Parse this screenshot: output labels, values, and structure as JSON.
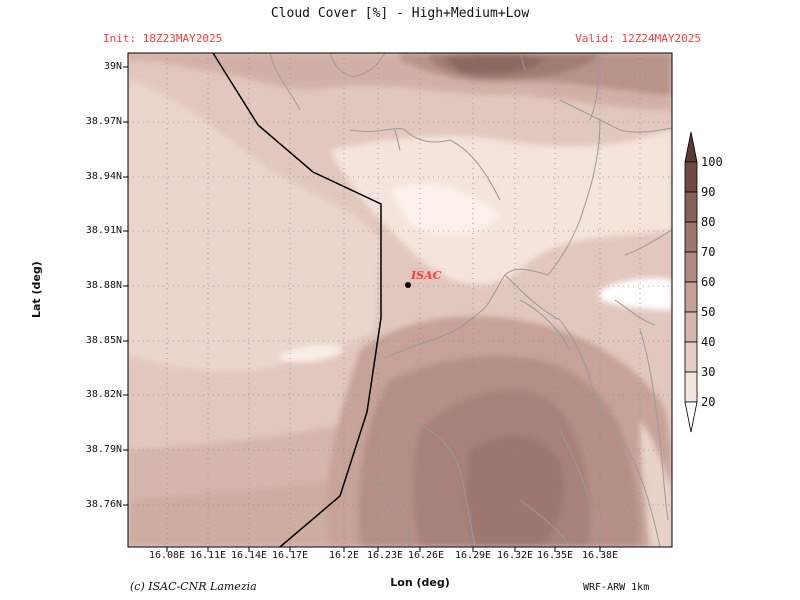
{
  "title": "Cloud Cover [%] - High+Medium+Low",
  "init_label": "Init: 18Z23MAY2025",
  "valid_label": "Valid: 12Z24MAY2025",
  "axes": {
    "x_label": "Lon (deg)",
    "y_label": "Lat (deg)",
    "x_ticks": [
      "16.08E",
      "16.11E",
      "16.14E",
      "16.17E",
      "16.2E",
      "16.23E",
      "16.26E",
      "16.29E",
      "16.32E",
      "16.35E",
      "16.38E"
    ],
    "y_ticks": [
      "39N",
      "38.97N",
      "38.94N",
      "38.91N",
      "38.88N",
      "38.85N",
      "38.82N",
      "38.79N",
      "38.76N"
    ]
  },
  "site": {
    "label": "ISAC",
    "marker": "station-dot"
  },
  "colorbar": {
    "levels": [
      "100",
      "90",
      "80",
      "70",
      "60",
      "50",
      "40",
      "30",
      "20"
    ],
    "colors": [
      "#6e4a42",
      "#86625a",
      "#9c776e",
      "#b08b82",
      "#c4a097",
      "#d5b6ad",
      "#e6cdc4",
      "#f5e6dc",
      "#ffffff"
    ]
  },
  "credit": "(c) ISAC-CNR Lamezia",
  "model": "WRF-ARW 1km"
}
